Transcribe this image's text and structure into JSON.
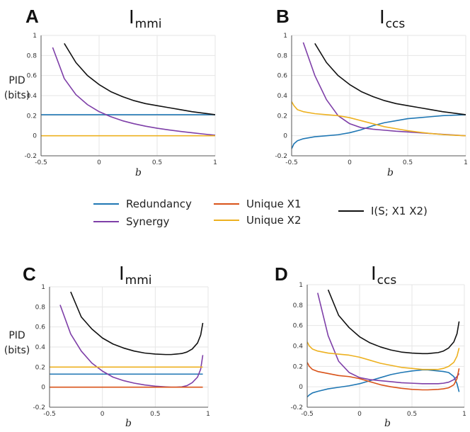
{
  "figure": {
    "ylabel_line1": "PID",
    "ylabel_line2": "(bits)",
    "xlabel": "b",
    "colors": {
      "redundancy": "#1f77b4",
      "synergy": "#7e3fa8",
      "unique_x1": "#d95319",
      "unique_x2": "#edb120",
      "total": "#111111"
    }
  },
  "legend": [
    {
      "key": "redundancy",
      "label": "Redundancy"
    },
    {
      "key": "synergy",
      "label": "Synergy"
    },
    {
      "key": "unique_x1",
      "label": "Unique X1"
    },
    {
      "key": "unique_x2",
      "label": "Unique X2"
    },
    {
      "key": "total",
      "label": "I(S; X1 X2)"
    }
  ],
  "panels": [
    {
      "letter": "A",
      "title_main": "I",
      "title_sub": "mmi"
    },
    {
      "letter": "B",
      "title_main": "I",
      "title_sub": "ccs"
    },
    {
      "letter": "C",
      "title_main": "I",
      "title_sub": "mmi"
    },
    {
      "letter": "D",
      "title_main": "I",
      "title_sub": "ccs"
    }
  ],
  "chart_data": [
    {
      "type": "line",
      "title": "Immi",
      "xlabel": "b",
      "ylabel": "PID (bits)",
      "xlim": [
        -0.5,
        1
      ],
      "ylim": [
        -0.2,
        1
      ],
      "xticks": [
        "-0.5",
        "0",
        "0.5",
        "1"
      ],
      "xtick_values": [
        -0.5,
        0,
        0.5,
        1
      ],
      "yticks": [
        "-0.2",
        "0",
        "0.2",
        "0.4",
        "0.6",
        "0.8",
        "1"
      ],
      "ytick_values": [
        -0.2,
        0,
        0.2,
        0.4,
        0.6,
        0.8,
        1
      ],
      "x": [
        -0.5,
        -0.4,
        -0.3,
        -0.2,
        -0.1,
        0,
        0.1,
        0.2,
        0.3,
        0.4,
        0.5,
        0.6,
        0.7,
        0.8,
        0.9,
        1.0
      ],
      "series": [
        {
          "key": "redundancy",
          "name": "Redundancy",
          "values": [
            0.21,
            0.21,
            0.21,
            0.21,
            0.21,
            0.21,
            0.21,
            0.21,
            0.21,
            0.21,
            0.21,
            0.21,
            0.21,
            0.21,
            0.21,
            0.21
          ]
        },
        {
          "key": "synergy",
          "name": "Synergy",
          "values": [
            null,
            0.88,
            0.57,
            0.41,
            0.31,
            0.24,
            0.19,
            0.15,
            0.12,
            0.095,
            0.075,
            0.058,
            0.043,
            0.03,
            0.017,
            0.005
          ]
        },
        {
          "key": "unique_x2",
          "name": "Unique X2",
          "values": [
            0,
            0,
            0,
            0,
            0,
            0,
            0,
            0,
            0,
            0,
            0,
            0,
            0,
            0,
            0,
            0
          ]
        },
        {
          "key": "total",
          "name": "I(S; X1 X2)",
          "values": [
            null,
            null,
            0.92,
            0.73,
            0.6,
            0.51,
            0.44,
            0.39,
            0.35,
            0.32,
            0.3,
            0.28,
            0.26,
            0.24,
            0.225,
            0.21
          ]
        }
      ]
    },
    {
      "type": "line",
      "title": "Iccs",
      "xlabel": "b",
      "ylabel": "",
      "xlim": [
        -0.5,
        1
      ],
      "ylim": [
        -0.2,
        1
      ],
      "xticks": [
        "-0.5",
        "0",
        "0.5",
        "1"
      ],
      "xtick_values": [
        -0.5,
        0,
        0.5,
        1
      ],
      "yticks": [
        "-0.2",
        "0",
        "0.2",
        "0.4",
        "0.6",
        "0.8",
        "1"
      ],
      "ytick_values": [
        -0.2,
        0,
        0.2,
        0.4,
        0.6,
        0.8,
        1
      ],
      "x": [
        -0.5,
        -0.48,
        -0.45,
        -0.4,
        -0.3,
        -0.2,
        -0.1,
        0,
        0.1,
        0.2,
        0.3,
        0.4,
        0.5,
        0.6,
        0.7,
        0.8,
        0.9,
        1.0
      ],
      "series": [
        {
          "key": "redundancy",
          "name": "Redundancy",
          "values": [
            -0.13,
            -0.08,
            -0.05,
            -0.03,
            -0.01,
            0.0,
            0.01,
            0.03,
            0.06,
            0.1,
            0.13,
            0.15,
            0.17,
            0.18,
            0.19,
            0.2,
            0.205,
            0.21
          ]
        },
        {
          "key": "synergy",
          "name": "Synergy",
          "values": [
            null,
            null,
            null,
            0.93,
            0.6,
            0.36,
            0.2,
            0.12,
            0.08,
            0.065,
            0.055,
            0.045,
            0.038,
            0.03,
            0.022,
            0.014,
            0.007,
            0.0
          ]
        },
        {
          "key": "unique_x2",
          "name": "Unique X2",
          "values": [
            0.34,
            0.3,
            0.26,
            0.24,
            0.22,
            0.21,
            0.2,
            0.18,
            0.15,
            0.12,
            0.09,
            0.07,
            0.05,
            0.035,
            0.022,
            0.012,
            0.005,
            0.0
          ]
        },
        {
          "key": "total",
          "name": "I(S; X1 X2)",
          "values": [
            null,
            null,
            null,
            null,
            0.92,
            0.73,
            0.6,
            0.51,
            0.44,
            0.39,
            0.35,
            0.32,
            0.3,
            0.28,
            0.26,
            0.24,
            0.225,
            0.21
          ]
        }
      ]
    },
    {
      "type": "line",
      "title": "Immi",
      "xlabel": "b",
      "ylabel": "PID (bits)",
      "xlim": [
        -0.5,
        1
      ],
      "ylim": [
        -0.2,
        1
      ],
      "xticks": [
        "-0.5",
        "0",
        "0.5",
        "1"
      ],
      "xtick_values": [
        -0.5,
        0,
        0.5,
        1
      ],
      "yticks": [
        "-0.2",
        "0",
        "0.2",
        "0.4",
        "0.6",
        "0.8",
        "1"
      ],
      "ytick_values": [
        -0.2,
        0,
        0.2,
        0.4,
        0.6,
        0.8,
        1
      ],
      "x": [
        -0.5,
        -0.4,
        -0.3,
        -0.2,
        -0.1,
        0,
        0.1,
        0.2,
        0.3,
        0.4,
        0.5,
        0.6,
        0.65,
        0.7,
        0.75,
        0.8,
        0.85,
        0.9,
        0.93,
        0.95
      ],
      "series": [
        {
          "key": "redundancy",
          "name": "Redundancy",
          "values": [
            0.13,
            0.13,
            0.13,
            0.13,
            0.13,
            0.13,
            0.13,
            0.13,
            0.13,
            0.13,
            0.13,
            0.13,
            0.13,
            0.13,
            0.13,
            0.13,
            0.13,
            0.13,
            0.13,
            0.13
          ]
        },
        {
          "key": "synergy",
          "name": "Synergy",
          "values": [
            null,
            0.82,
            0.53,
            0.36,
            0.24,
            0.16,
            0.1,
            0.065,
            0.04,
            0.022,
            0.01,
            0.003,
            0.0,
            0.0,
            0.003,
            0.015,
            0.045,
            0.1,
            0.18,
            0.32
          ]
        },
        {
          "key": "unique_x1",
          "name": "Unique X1",
          "values": [
            0,
            0,
            0,
            0,
            0,
            0,
            0,
            0,
            0,
            0,
            0,
            0,
            0,
            0,
            0,
            0,
            0,
            0,
            0,
            0
          ]
        },
        {
          "key": "unique_x2",
          "name": "Unique X2",
          "values": [
            0.2,
            0.2,
            0.2,
            0.2,
            0.2,
            0.2,
            0.2,
            0.2,
            0.2,
            0.2,
            0.2,
            0.2,
            0.2,
            0.2,
            0.2,
            0.2,
            0.2,
            0.2,
            0.2,
            0.2
          ]
        },
        {
          "key": "total",
          "name": "I(S; X1 X2)",
          "values": [
            null,
            null,
            0.95,
            0.7,
            0.58,
            0.49,
            0.43,
            0.39,
            0.36,
            0.34,
            0.33,
            0.325,
            0.325,
            0.33,
            0.335,
            0.35,
            0.38,
            0.44,
            0.52,
            0.64
          ]
        }
      ]
    },
    {
      "type": "line",
      "title": "Iccs",
      "xlabel": "b",
      "ylabel": "",
      "xlim": [
        -0.5,
        1
      ],
      "ylim": [
        -0.2,
        1
      ],
      "xticks": [
        "-0.5",
        "0",
        "0.5",
        "1"
      ],
      "xtick_values": [
        -0.5,
        0,
        0.5,
        1
      ],
      "yticks": [
        "-0.2",
        "0",
        "0.2",
        "0.4",
        "0.6",
        "0.8",
        "1"
      ],
      "ytick_values": [
        -0.2,
        0,
        0.2,
        0.4,
        0.6,
        0.8,
        1
      ],
      "x": [
        -0.5,
        -0.48,
        -0.45,
        -0.4,
        -0.3,
        -0.2,
        -0.1,
        0,
        0.1,
        0.2,
        0.3,
        0.4,
        0.5,
        0.6,
        0.65,
        0.7,
        0.75,
        0.8,
        0.85,
        0.9,
        0.93,
        0.95
      ],
      "series": [
        {
          "key": "redundancy",
          "name": "Redundancy",
          "values": [
            -0.1,
            -0.08,
            -0.06,
            -0.045,
            -0.02,
            -0.005,
            0.01,
            0.03,
            0.06,
            0.09,
            0.12,
            0.14,
            0.155,
            0.165,
            0.165,
            0.16,
            0.155,
            0.15,
            0.14,
            0.1,
            0.03,
            -0.05
          ]
        },
        {
          "key": "synergy",
          "name": "Synergy",
          "values": [
            null,
            null,
            null,
            0.92,
            0.5,
            0.25,
            0.14,
            0.09,
            0.07,
            0.06,
            0.05,
            0.04,
            0.035,
            0.03,
            0.03,
            0.03,
            0.03,
            0.035,
            0.045,
            0.07,
            0.1,
            0.13
          ]
        },
        {
          "key": "unique_x1",
          "name": "Unique X1",
          "values": [
            0.24,
            0.2,
            0.17,
            0.15,
            0.13,
            0.11,
            0.1,
            0.08,
            0.05,
            0.02,
            0.0,
            -0.015,
            -0.025,
            -0.03,
            -0.03,
            -0.028,
            -0.025,
            -0.02,
            -0.01,
            0.02,
            0.08,
            0.18
          ]
        },
        {
          "key": "unique_x2",
          "name": "Unique X2",
          "values": [
            0.44,
            0.4,
            0.37,
            0.35,
            0.33,
            0.32,
            0.31,
            0.29,
            0.26,
            0.23,
            0.21,
            0.19,
            0.18,
            0.17,
            0.17,
            0.17,
            0.17,
            0.18,
            0.2,
            0.24,
            0.3,
            0.38
          ]
        },
        {
          "key": "total",
          "name": "I(S; X1 X2)",
          "values": [
            null,
            null,
            null,
            null,
            0.95,
            0.7,
            0.58,
            0.49,
            0.43,
            0.39,
            0.36,
            0.34,
            0.33,
            0.325,
            0.325,
            0.33,
            0.335,
            0.35,
            0.38,
            0.44,
            0.52,
            0.64
          ]
        }
      ]
    }
  ]
}
